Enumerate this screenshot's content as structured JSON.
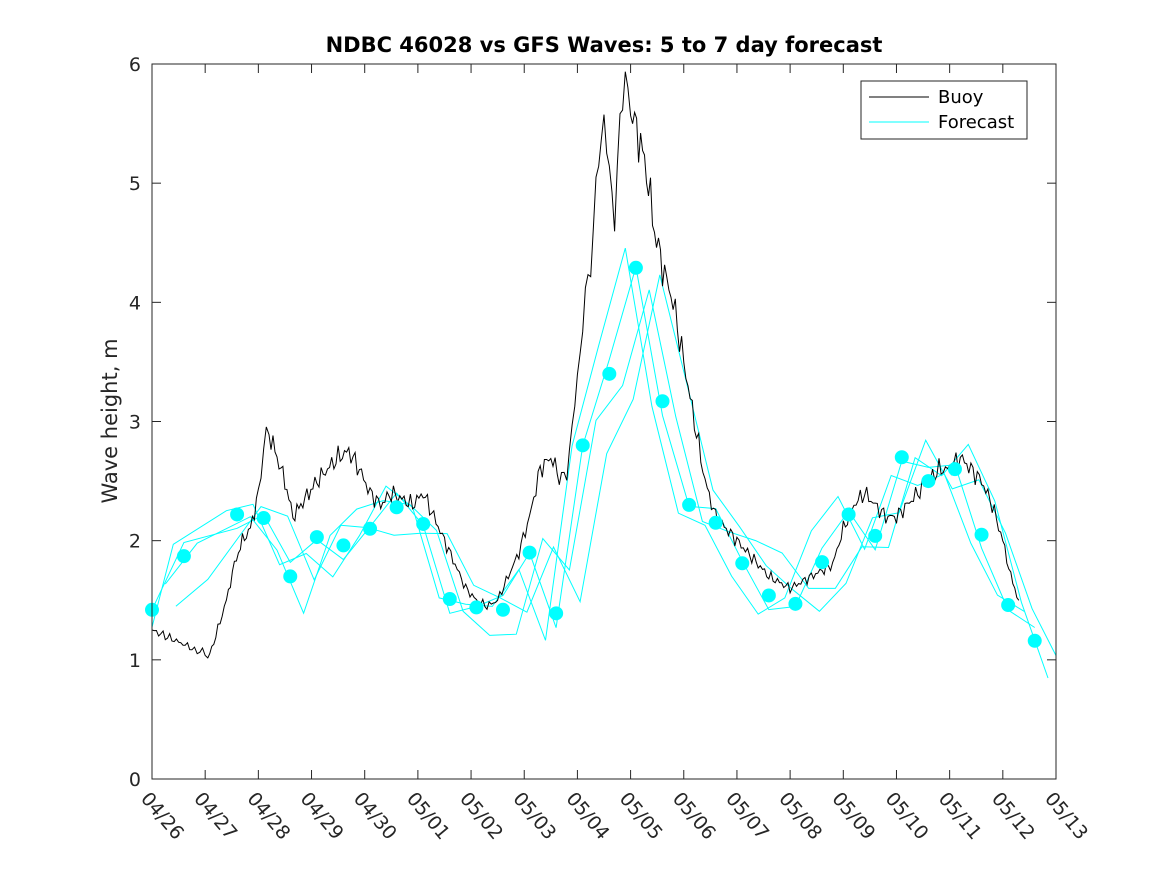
{
  "chart_data": {
    "type": "line",
    "title": "NDBC 46028 vs GFS Waves: 5 to 7 day forecast",
    "xlabel": "",
    "ylabel": "Wave height, m",
    "x_ticks": [
      "04/26",
      "04/27",
      "04/28",
      "04/29",
      "04/30",
      "05/01",
      "05/02",
      "05/03",
      "05/04",
      "05/05",
      "05/06",
      "05/07",
      "05/08",
      "05/09",
      "05/10",
      "05/11",
      "05/12",
      "05/13"
    ],
    "xlim_days": [
      0,
      17
    ],
    "ylim": [
      0,
      6
    ],
    "y_ticks": [
      0,
      1,
      2,
      3,
      4,
      5,
      6
    ],
    "grid": false,
    "legend": {
      "position": "top-right",
      "entries": [
        {
          "name": "Buoy",
          "color": "#000000"
        },
        {
          "name": "Forecast",
          "color": "#00ffff"
        }
      ]
    },
    "series": [
      {
        "name": "Buoy",
        "color": "#000000",
        "x": [
          0,
          0.25,
          0.5,
          0.75,
          0.85,
          0.95,
          1.05,
          1.2,
          1.4,
          1.55,
          1.7,
          1.85,
          2.0,
          2.1,
          2.2,
          2.35,
          2.5,
          2.65,
          2.8,
          2.95,
          3.1,
          3.3,
          3.5,
          3.7,
          3.9,
          4.1,
          4.3,
          4.5,
          4.7,
          4.9,
          5.1,
          5.3,
          5.5,
          5.7,
          5.9,
          6.1,
          6.3,
          6.5,
          6.7,
          6.9,
          7.1,
          7.3,
          7.5,
          7.7,
          7.8,
          7.9,
          8.0,
          8.1,
          8.2,
          8.3,
          8.4,
          8.5,
          8.6,
          8.7,
          8.8,
          8.9,
          9.0,
          9.15,
          9.3,
          9.45,
          9.6,
          9.8,
          10.0,
          10.2,
          10.4,
          10.6,
          10.8,
          11.0,
          11.2,
          11.4,
          11.6,
          11.8,
          12.0,
          12.2,
          12.4,
          12.6,
          12.8,
          13.0,
          13.2,
          13.4,
          13.6,
          13.8,
          14.0,
          14.2,
          14.4,
          14.6,
          14.8,
          15.0,
          15.2,
          15.4,
          15.6,
          15.8,
          16.0,
          16.15,
          16.3
        ],
        "y": [
          1.25,
          1.2,
          1.15,
          1.1,
          1.05,
          1.1,
          1.0,
          1.2,
          1.5,
          1.8,
          2.0,
          2.1,
          2.4,
          2.8,
          2.9,
          2.7,
          2.5,
          2.2,
          2.3,
          2.4,
          2.5,
          2.6,
          2.7,
          2.75,
          2.6,
          2.4,
          2.3,
          2.4,
          2.35,
          2.3,
          2.4,
          2.2,
          2.0,
          1.8,
          1.6,
          1.5,
          1.45,
          1.5,
          1.7,
          1.9,
          2.2,
          2.6,
          2.7,
          2.5,
          2.6,
          2.9,
          3.4,
          3.8,
          4.2,
          4.6,
          5.2,
          5.6,
          5.0,
          4.8,
          5.4,
          6.0,
          5.6,
          5.4,
          5.1,
          4.6,
          4.3,
          4.0,
          3.5,
          3.0,
          2.5,
          2.2,
          2.1,
          2.0,
          1.9,
          1.8,
          1.7,
          1.65,
          1.6,
          1.65,
          1.7,
          1.75,
          1.8,
          2.1,
          2.3,
          2.4,
          2.3,
          2.2,
          2.2,
          2.3,
          2.4,
          2.5,
          2.6,
          2.6,
          2.7,
          2.6,
          2.5,
          2.3,
          2.0,
          1.7,
          1.5
        ]
      },
      {
        "name": "Forecast",
        "color": "#00ffff",
        "x": [
          0,
          0.6,
          1.6,
          2.1,
          2.6,
          3.1,
          3.6,
          4.1,
          4.6,
          5.1,
          5.6,
          6.1,
          6.6,
          7.1,
          7.6,
          8.1,
          8.6,
          9.1,
          9.6,
          10.1,
          10.6,
          11.1,
          11.6,
          12.1,
          12.6,
          13.1,
          13.6,
          14.1,
          14.6,
          15.1,
          15.6,
          16.1,
          16.6
        ],
        "y": [
          1.42,
          1.87,
          2.22,
          2.19,
          1.7,
          2.03,
          1.96,
          2.1,
          2.28,
          2.14,
          1.51,
          1.44,
          1.42,
          1.9,
          1.39,
          2.8,
          3.4,
          4.29,
          3.17,
          2.3,
          2.15,
          1.81,
          1.54,
          1.47,
          1.82,
          2.22,
          2.04,
          2.7,
          2.5,
          2.6,
          2.05,
          1.46,
          1.16
        ]
      }
    ]
  }
}
